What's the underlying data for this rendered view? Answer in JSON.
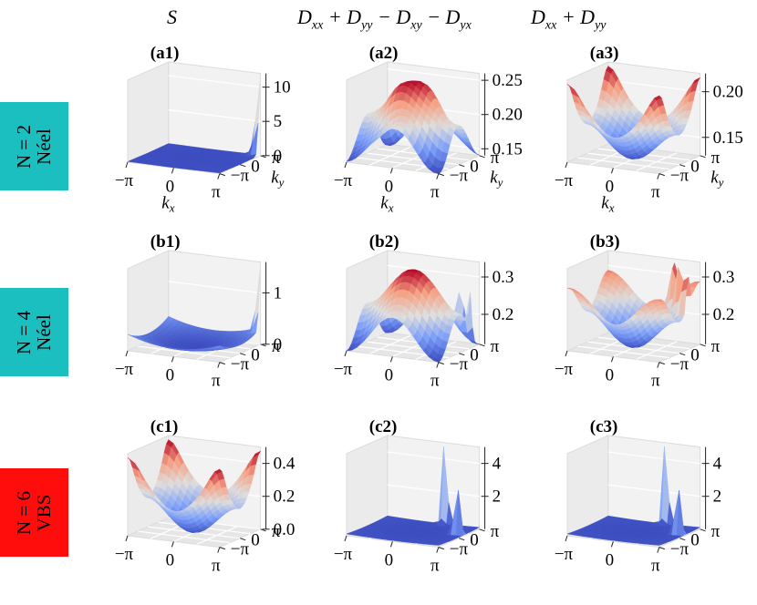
{
  "column_titles": [
    {
      "main": "S",
      "html": "S"
    },
    {
      "main": "Dxx+Dyy−Dxy−Dyx",
      "html": "D<sub>xx</sub> + D<sub>yy</sub> − D<sub>xy</sub> − D<sub>yx</sub>"
    },
    {
      "main": "Dxx+Dyy",
      "html": "D<sub>xx</sub> + D<sub>yy</sub>"
    }
  ],
  "rows": [
    {
      "n_label": "N = 2",
      "phase": "Néel",
      "color": "#1bbfc0"
    },
    {
      "n_label": "N = 4",
      "phase": "Néel",
      "color": "#1bbfc0"
    },
    {
      "n_label": "N = 6",
      "phase": "VBS",
      "color": "#ff0d0d"
    }
  ],
  "chart_data": [
    {
      "type": "surface3d",
      "panel": "(a1)",
      "xlabel": "kx",
      "ylabel": "ky",
      "x_ticks": [
        "−π",
        "0",
        "π"
      ],
      "y_ticks": [
        "−π",
        "0",
        "π"
      ],
      "zlim": [
        0,
        12
      ],
      "z_ticks": [
        "0",
        "5",
        "10"
      ],
      "z_tick_values": [
        0,
        5,
        10
      ],
      "shape": "peak_corner",
      "peak": 12,
      "base": 0.1,
      "show_axis_labels": true
    },
    {
      "type": "surface3d",
      "panel": "(a2)",
      "xlabel": "kx",
      "ylabel": "ky",
      "x_ticks": [
        "−π",
        "0",
        "π"
      ],
      "y_ticks": [
        "−π",
        "0",
        "π"
      ],
      "zlim": [
        0.14,
        0.26
      ],
      "z_ticks": [
        "0.15",
        "0.20",
        "0.25"
      ],
      "z_tick_values": [
        0.15,
        0.2,
        0.25
      ],
      "shape": "dome",
      "min": 0.14,
      "max": 0.26,
      "show_axis_labels": true
    },
    {
      "type": "surface3d",
      "panel": "(a3)",
      "xlabel": "kx",
      "ylabel": "ky",
      "x_ticks": [
        "−π",
        "0",
        "π"
      ],
      "y_ticks": [
        "−π",
        "0",
        "π"
      ],
      "zlim": [
        0.13,
        0.22
      ],
      "z_ticks": [
        "0.15",
        "0.20"
      ],
      "z_tick_values": [
        0.15,
        0.2
      ],
      "shape": "bowl",
      "min": 0.13,
      "max": 0.22,
      "show_axis_labels": true
    },
    {
      "type": "surface3d",
      "panel": "(b1)",
      "x_ticks": [
        "−π",
        "0",
        "π"
      ],
      "y_ticks": [
        "−π",
        "0",
        "π"
      ],
      "zlim": [
        0,
        1.6
      ],
      "z_ticks": [
        "0",
        "1"
      ],
      "z_tick_values": [
        0,
        1
      ],
      "shape": "bowl_peak",
      "min": 0,
      "max": 1.5,
      "show_axis_labels": false
    },
    {
      "type": "surface3d",
      "panel": "(b2)",
      "x_ticks": [
        "−π",
        "0",
        "π"
      ],
      "y_ticks": [
        "−π",
        "0",
        "π"
      ],
      "zlim": [
        0.12,
        0.34
      ],
      "z_ticks": [
        "0.2",
        "0.3"
      ],
      "z_tick_values": [
        0.2,
        0.3
      ],
      "shape": "dome_spikes",
      "min": 0.12,
      "max": 0.33,
      "show_axis_labels": false
    },
    {
      "type": "surface3d",
      "panel": "(b3)",
      "x_ticks": [
        "−π",
        "0",
        "π"
      ],
      "y_ticks": [
        "−π",
        "0",
        "π"
      ],
      "zlim": [
        0.12,
        0.34
      ],
      "z_ticks": [
        "0.2",
        "0.3"
      ],
      "z_tick_values": [
        0.2,
        0.3
      ],
      "shape": "bowl_spikes",
      "min": 0.12,
      "max": 0.33,
      "show_axis_labels": false
    },
    {
      "type": "surface3d",
      "panel": "(c1)",
      "x_ticks": [
        "−π",
        "0",
        "π"
      ],
      "y_ticks": [
        "−π",
        "0",
        "π"
      ],
      "zlim": [
        0,
        0.5
      ],
      "z_ticks": [
        "0.0",
        "0.2",
        "0.4"
      ],
      "z_tick_values": [
        0,
        0.2,
        0.4
      ],
      "shape": "bowl",
      "min": 0.03,
      "max": 0.48,
      "show_axis_labels": false
    },
    {
      "type": "surface3d",
      "panel": "(c2)",
      "x_ticks": [
        "−π",
        "0",
        "π"
      ],
      "y_ticks": [
        "−π",
        "0",
        "π"
      ],
      "zlim": [
        0,
        5
      ],
      "z_ticks": [
        "2",
        "4"
      ],
      "z_tick_values": [
        2,
        4
      ],
      "shape": "two_spikes",
      "min": 0.2,
      "max": 5,
      "show_axis_labels": false
    },
    {
      "type": "surface3d",
      "panel": "(c3)",
      "x_ticks": [
        "−π",
        "0",
        "π"
      ],
      "y_ticks": [
        "−π",
        "0",
        "π"
      ],
      "zlim": [
        0,
        5
      ],
      "z_ticks": [
        "2",
        "4"
      ],
      "z_tick_values": [
        2,
        4
      ],
      "shape": "two_spikes",
      "min": 0.2,
      "max": 5,
      "show_axis_labels": false
    }
  ]
}
